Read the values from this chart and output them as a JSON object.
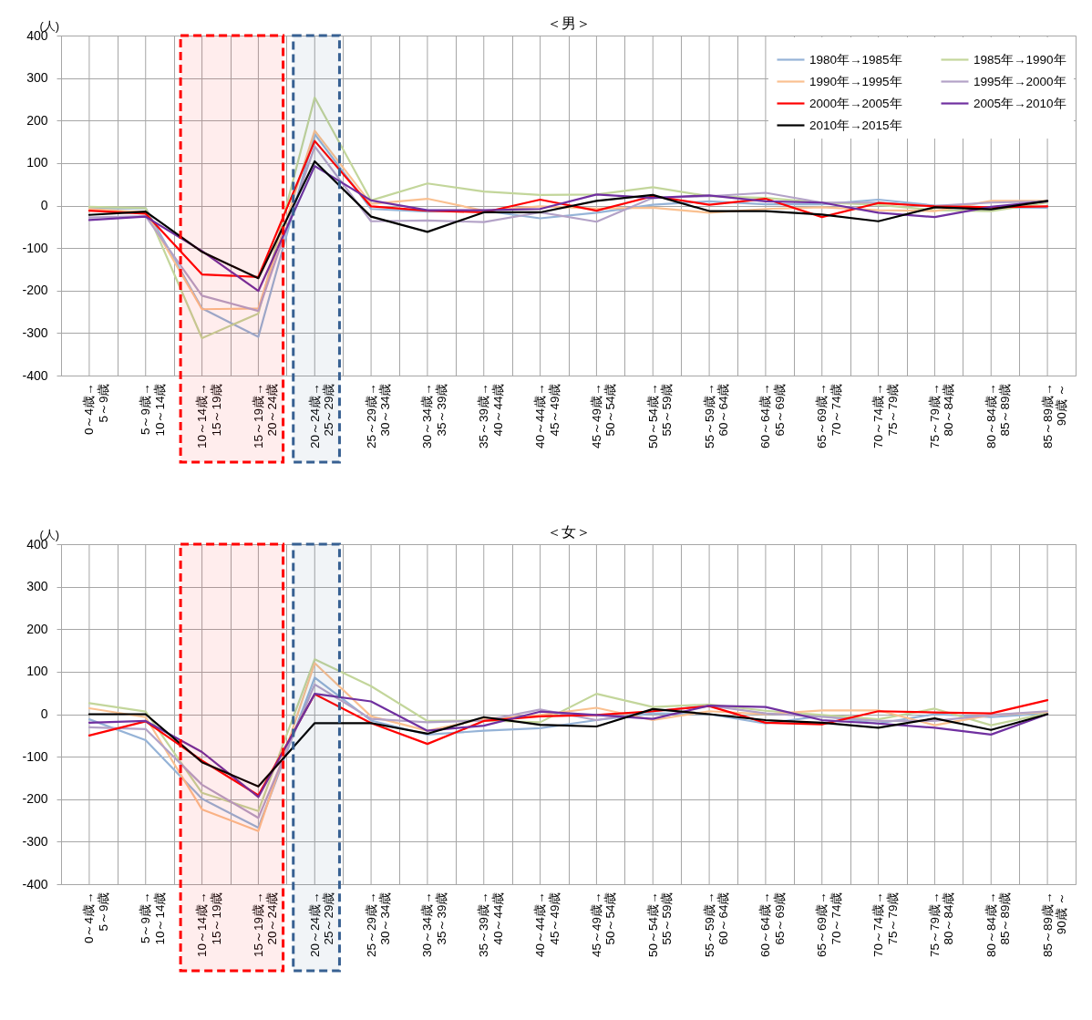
{
  "chart_data": [
    {
      "type": "line",
      "title": "＜男＞",
      "ylabel": "(人)",
      "categories": [
        "0～4歳→\n5～9歳",
        "5～9歳→\n10～14歳",
        "10～14歳→\n15～19歳",
        "15～19歳→\n20～24歳",
        "20～24歳→\n25～29歳",
        "25～29歳→\n30～34歳",
        "30～34歳→\n35～39歳",
        "35～39歳→\n40～44歳",
        "40～44歳→\n45～49歳",
        "45～49歳→\n50～54歳",
        "50～54歳→\n55～59歳",
        "55～59歳→\n60～64歳",
        "60～64歳→\n65～69歳",
        "65～69歳→\n70～74歳",
        "70～74歳→\n75～79歳",
        "75～79歳→\n80～84歳",
        "80～84歳→\n85～89歳",
        "85～89歳→\n90歳 ～"
      ],
      "series": [
        {
          "name": "1980年→1985年",
          "color": "#95b3d7",
          "values": [
            -7,
            -6,
            -242,
            -309,
            168,
            -8,
            -14,
            -12,
            -30,
            -17,
            2,
            10,
            3,
            3,
            14,
            0,
            -4,
            -5
          ]
        },
        {
          "name": "1985年→1990年",
          "color": "#c3d69b",
          "values": [
            -3,
            -6,
            -312,
            -254,
            254,
            12,
            52,
            33,
            25,
            26,
            43,
            22,
            18,
            7,
            2,
            -11,
            -13,
            7
          ]
        },
        {
          "name": "1990年→1995年",
          "color": "#fac090",
          "values": [
            -8,
            -16,
            -244,
            -242,
            176,
            4,
            16,
            -12,
            -2,
            -7,
            -5,
            -17,
            -8,
            -4,
            -11,
            -13,
            11,
            11
          ]
        },
        {
          "name": "1995年→2000年",
          "color": "#b3a2c7",
          "values": [
            -28,
            -25,
            -212,
            -248,
            139,
            -37,
            -35,
            -39,
            -16,
            -38,
            18,
            22,
            30,
            7,
            7,
            -1,
            7,
            10
          ]
        },
        {
          "name": "2000年→2005年",
          "color": "#ff0000",
          "values": [
            -12,
            -19,
            -162,
            -168,
            152,
            -2,
            -12,
            -16,
            14,
            -12,
            22,
            2,
            16,
            -27,
            6,
            -2,
            -4,
            -2
          ]
        },
        {
          "name": "2005年→2010年",
          "color": "#7030a0",
          "values": [
            -34,
            -26,
            -107,
            -201,
            93,
            12,
            -11,
            -11,
            -8,
            26,
            18,
            24,
            10,
            7,
            -17,
            -27,
            -3,
            10
          ]
        },
        {
          "name": "2010年→2015年",
          "color": "#000000",
          "values": [
            -22,
            -14,
            -109,
            -171,
            104,
            -26,
            -62,
            -16,
            -16,
            11,
            25,
            -13,
            -13,
            -21,
            -37,
            -4,
            -9,
            11
          ]
        }
      ],
      "ylim": [
        -400,
        400
      ],
      "yticks": [
        -400,
        -300,
        -200,
        -100,
        0,
        100,
        200,
        300,
        400
      ],
      "grid": true,
      "legend": "top right",
      "line_style": "solid",
      "bands": [
        {
          "axis": "x",
          "from": "10～14歳→\n15～19歳",
          "to": "15～19歳→\n20～24歳",
          "color": "#ff0000"
        },
        {
          "axis": "x",
          "from": "20～24歳→\n25～29歳",
          "to": "20～24歳→\n25～29歳",
          "color": "#376092"
        }
      ]
    },
    {
      "type": "line",
      "title": "＜女＞",
      "ylabel": "(人)",
      "categories": [
        "0～4歳→\n5～9歳",
        "5～9歳→\n10～14歳",
        "10～14歳→\n15～19歳",
        "15～19歳→\n20～24歳",
        "20～24歳→\n25～29歳",
        "25～29歳→\n30～34歳",
        "30～34歳→\n35～39歳",
        "35～39歳→\n40～44歳",
        "40～44歳→\n45～49歳",
        "45～49歳→\n50～54歳",
        "50～54歳→\n55～59歳",
        "55～59歳→\n60～64歳",
        "60～64歳→\n65～69歳",
        "65～69歳→\n70～74歳",
        "70～74歳→\n75～79歳",
        "75～79歳→\n80～84歳",
        "80～84歳→\n85～89歳",
        "85～89歳→\n90歳 ～"
      ],
      "series": [
        {
          "name": "1980年→1985年",
          "color": "#95b3d7",
          "values": [
            -12,
            -61,
            -199,
            -267,
            86,
            -15,
            -48,
            -39,
            -33,
            -14,
            2,
            0,
            -22,
            -4,
            -22,
            0,
            -7,
            2
          ]
        },
        {
          "name": "1985年→1990年",
          "color": "#c3d69b",
          "values": [
            26,
            6,
            -185,
            -228,
            129,
            66,
            -16,
            -15,
            -19,
            48,
            17,
            23,
            8,
            -2,
            -12,
            13,
            -26,
            2
          ]
        },
        {
          "name": "1990年→1995年",
          "color": "#fac090",
          "values": [
            14,
            -7,
            -224,
            -275,
            120,
            -5,
            -39,
            -11,
            -2,
            15,
            -14,
            7,
            0,
            9,
            9,
            -26,
            -2,
            5
          ]
        },
        {
          "name": "1995年→2000年",
          "color": "#b3a2c7",
          "values": [
            -31,
            -35,
            -166,
            -244,
            70,
            -11,
            -19,
            -15,
            11,
            -14,
            7,
            20,
            2,
            -6,
            -16,
            -16,
            -2,
            7
          ]
        },
        {
          "name": "2000年→2005年",
          "color": "#ff0000",
          "values": [
            -50,
            -17,
            -109,
            -191,
            47,
            -21,
            -70,
            -16,
            -5,
            -2,
            7,
            19,
            -20,
            -24,
            7,
            4,
            2,
            33
          ]
        },
        {
          "name": "2005年→2010年",
          "color": "#7030a0",
          "values": [
            -20,
            -16,
            -89,
            -195,
            48,
            30,
            -39,
            -27,
            6,
            -2,
            -11,
            20,
            17,
            -14,
            -22,
            -32,
            -48,
            0
          ]
        },
        {
          "name": "2010年→2015年",
          "color": "#000000",
          "values": [
            0,
            0,
            -113,
            -170,
            -21,
            -21,
            -46,
            -7,
            -25,
            -29,
            12,
            0,
            -14,
            -20,
            -32,
            -10,
            -37,
            0
          ]
        }
      ],
      "ylim": [
        -400,
        400
      ],
      "yticks": [
        -400,
        -300,
        -200,
        -100,
        0,
        100,
        200,
        300,
        400
      ],
      "grid": true,
      "legend": "top right",
      "line_style": "solid",
      "bands": [
        {
          "axis": "x",
          "from": "10～14歳→\n15～19歳",
          "to": "15～19歳→\n20～24歳",
          "color": "#ff0000"
        },
        {
          "axis": "x",
          "from": "20～24歳→\n25～29歳",
          "to": "20～24歳→\n25～29歳",
          "color": "#376092"
        }
      ]
    }
  ]
}
